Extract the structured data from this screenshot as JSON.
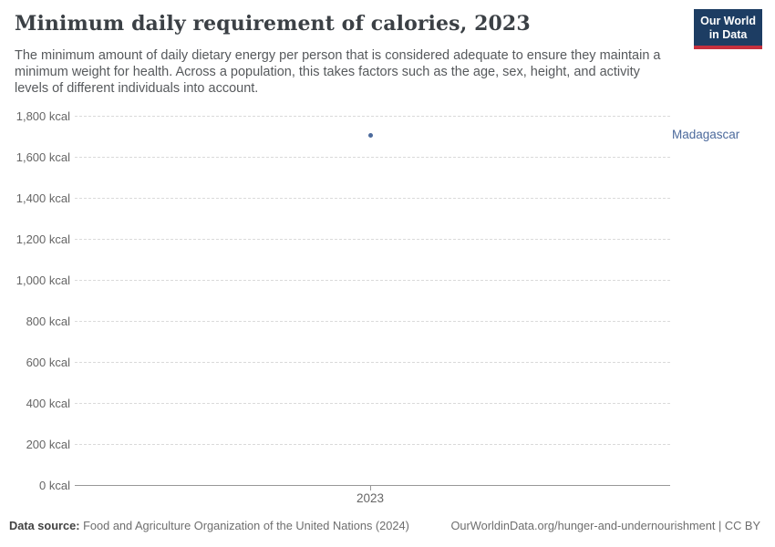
{
  "header": {
    "title": "Minimum daily requirement of calories, 2023",
    "logo": {
      "line1": "Our World",
      "line2": "in Data",
      "bg_color": "#1d3d63",
      "bar_color": "#c5303e"
    }
  },
  "subtitle": {
    "lines": [
      "The minimum amount of daily dietary energy per person that is considered adequate to ensure they maintain a",
      "minimum weight for health. Across a population, this takes factors such as the age, sex, height, and activity",
      "levels of different individuals into account."
    ]
  },
  "chart_data": {
    "type": "scatter",
    "title": "Minimum daily requirement of calories, 2023",
    "x": [
      2023
    ],
    "xtick_labels": [
      "2023"
    ],
    "series": [
      {
        "name": "Madagascar",
        "values": [
          1707
        ],
        "color": "#4c6a9c"
      }
    ],
    "unit": "kcal",
    "ylabel": "",
    "xlabel": "",
    "ylim": [
      0,
      1800
    ],
    "ytick_step": 200,
    "ytick_suffix": " kcal",
    "grid": "horizontal-dashed",
    "legend_position": "right-entity-label",
    "colors": {
      "series": "#4c6a9c",
      "gridline": "#dadada",
      "axis_line": "#989898",
      "tick_text": "#666666"
    }
  },
  "footer": {
    "source_label": "Data source:",
    "source_text": "Food and Agriculture Organization of the United Nations (2024)",
    "link_text": "OurWorldinData.org/hunger-and-undernourishment | CC BY"
  }
}
